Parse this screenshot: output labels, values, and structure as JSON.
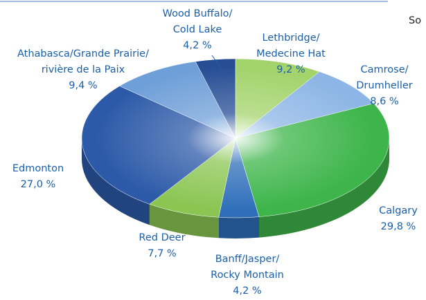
{
  "chart_data": {
    "type": "pie",
    "annotation": "So",
    "categories": [
      "Lethbridge/\nMedecine Hat",
      "Camrose/\nDrumheller",
      "Calgary",
      "Banff/Jasper/\nRocky Montain",
      "Red Deer",
      "Edmonton",
      "Athabasca/Grande Prairie/\nrivière de la Paix",
      "Wood Buffalo/\nCold Lake"
    ],
    "values": [
      9.2,
      8.6,
      29.8,
      4.2,
      7.7,
      27.0,
      9.4,
      4.2
    ],
    "value_labels": [
      "9,2 %",
      "8,6 %",
      "29,8 %",
      "4,2 %",
      "7,7 %",
      "27,0 %",
      "9,4 %",
      "4,2 %"
    ],
    "colors": [
      "#a3d36b",
      "#8db6e6",
      "#3db54a",
      "#2f6fba",
      "#8bc653",
      "#2d5aa8",
      "#6f9fd8",
      "#274e95"
    ]
  }
}
